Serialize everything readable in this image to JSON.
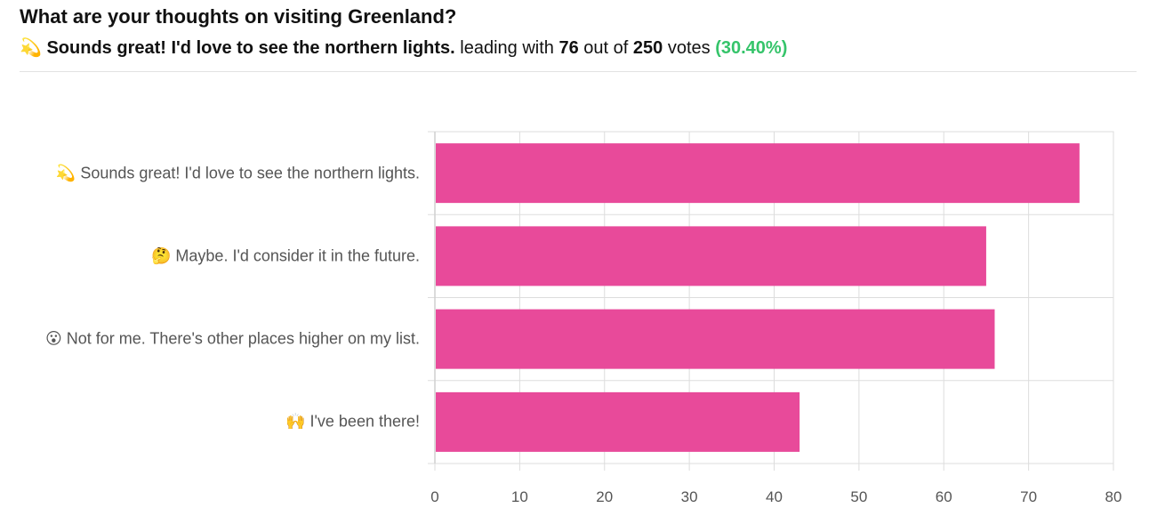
{
  "poll": {
    "question": "What are your thoughts on visiting Greenland?",
    "leader_emoji": "💫",
    "leader_text": "Sounds great! I'd love to see the northern lights.",
    "leading_with": "leading with",
    "leader_votes": "76",
    "out_of": "out of",
    "total_votes": "250",
    "votes_word": "votes",
    "leader_pct": "(30.40%)"
  },
  "chart_data": {
    "type": "bar",
    "orientation": "horizontal",
    "categories": [
      "💫 Sounds great! I'd love to see the northern lights.",
      "🤔 Maybe. I'd consider it in the future.",
      "😮 Not for me. There's other places higher on my list.",
      "🙌 I've been there!"
    ],
    "values": [
      76,
      65,
      66,
      43
    ],
    "xlim": [
      0,
      80
    ],
    "xticks": [
      "0",
      "10",
      "20",
      "30",
      "40",
      "50",
      "60",
      "70",
      "80"
    ],
    "grid": true,
    "bar_color": "#e84a9a",
    "grid_color": "#dddddd"
  }
}
